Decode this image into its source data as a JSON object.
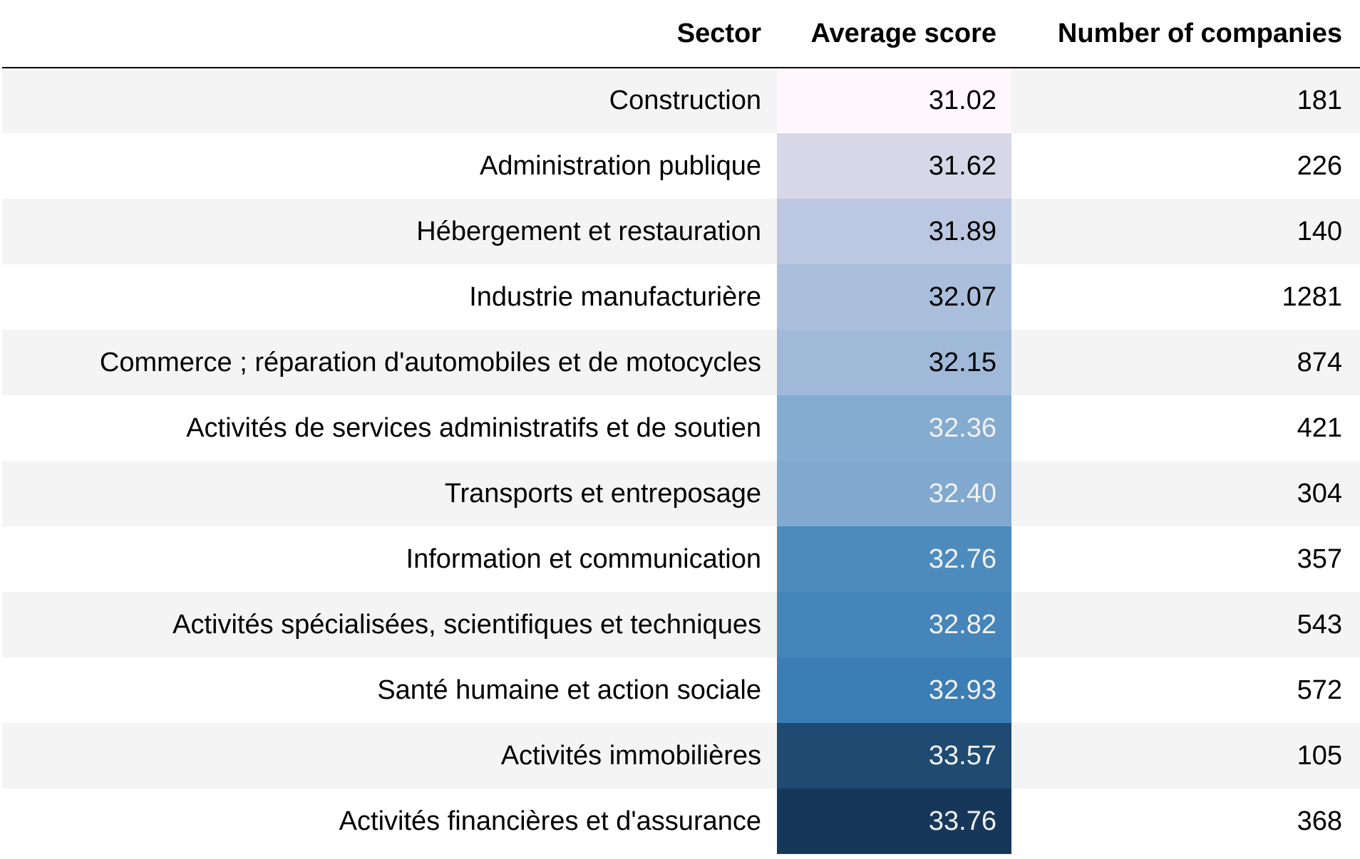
{
  "table": {
    "header": [
      "Sector",
      "Average score",
      "Number of companies"
    ],
    "rows": [
      [
        "Construction",
        "31.02",
        181
      ],
      [
        "Administration publique",
        "31.62",
        226
      ],
      [
        "Hébergement et restauration",
        "31.89",
        140
      ],
      [
        "Industrie manufacturière",
        "32.07",
        1281
      ],
      [
        "Commerce ; réparation d'automobiles et de motocycles",
        "32.15",
        874
      ],
      [
        "Activités de services administratifs et de soutien",
        "32.36",
        421
      ],
      [
        "Transports et entreposage",
        "32.40",
        304
      ],
      [
        "Information et communication",
        "32.76",
        357
      ],
      [
        "Activités spécialisées, scientifiques et techniques",
        "32.82",
        543
      ],
      [
        "Santé humaine et action sociale",
        "32.93",
        572
      ],
      [
        "Activités immobilières",
        "33.57",
        105
      ],
      [
        "Activités financières et d'assurance",
        "33.76",
        368
      ]
    ],
    "score_colors": [
      "#fff7fb",
      "#d8d7e8",
      "#bcc7e1",
      "#a9bfdc",
      "#a0b9d9",
      "#84abd0",
      "#81a9cf",
      "#4d8bbd",
      "#4585b9",
      "#3b7db5",
      "#1f4b72",
      "#17375a"
    ]
  }
}
